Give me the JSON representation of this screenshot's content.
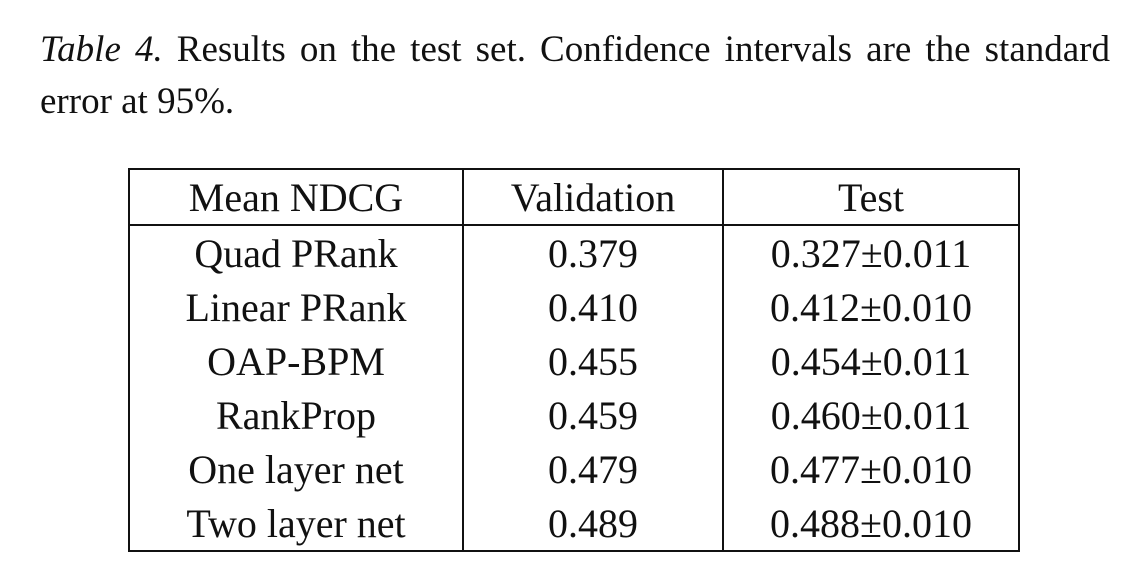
{
  "caption": {
    "label": "Table 4.",
    "text": "Results on the test set.  Confidence intervals are the standard error at 95%."
  },
  "table": {
    "headers": [
      "Mean NDCG",
      "Validation",
      "Test"
    ],
    "rows": [
      [
        "Quad PRank",
        "0.379",
        "0.327±0.011"
      ],
      [
        "Linear PRank",
        "0.410",
        "0.412±0.010"
      ],
      [
        "OAP-BPM",
        "0.455",
        "0.454±0.011"
      ],
      [
        "RankProp",
        "0.459",
        "0.460±0.011"
      ],
      [
        "One layer net",
        "0.479",
        "0.477±0.010"
      ],
      [
        "Two layer net",
        "0.489",
        "0.488±0.010"
      ]
    ]
  }
}
